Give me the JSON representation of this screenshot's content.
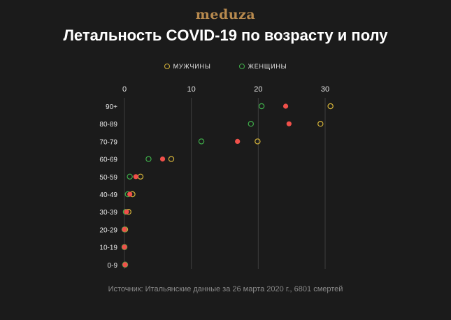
{
  "header": {
    "logo_text": "meduza",
    "title": "Летальность COVID-19 по возрасту и полу"
  },
  "legend": {
    "men_label": "МУЖЧИНЫ",
    "women_label": "ЖЕНЩИНЫ"
  },
  "footer": {
    "source": "Источник: Итальянские данные за 26 марта 2020 г., 6801 смертей"
  },
  "colors": {
    "background": "#1b1b1b",
    "men": "#d6b43a",
    "women": "#3fae4a",
    "average": "#f0504a",
    "grid": "#3e3e3e",
    "logo": "#b88a4e"
  },
  "chart_data": {
    "type": "scatter",
    "title": "Летальность COVID-19 по возрасту и полу",
    "xlim": [
      0,
      30
    ],
    "x_ticks": [
      0,
      10,
      20,
      30
    ],
    "grid": true,
    "legend_position": "top-center",
    "categories": [
      "90+",
      "80-89",
      "70-79",
      "60-69",
      "50-59",
      "40-49",
      "30-39",
      "20-29",
      "10-19",
      "0-9"
    ],
    "series": [
      {
        "name": "МУЖЧИНЫ",
        "marker": "open-circle",
        "color": "#d6b43a",
        "values": [
          30.8,
          29.3,
          19.9,
          7.0,
          2.4,
          1.2,
          0.6,
          0.1,
          0.0,
          0.1
        ]
      },
      {
        "name": "ЖЕНЩИНЫ",
        "marker": "open-circle",
        "color": "#3fae4a",
        "values": [
          20.5,
          18.9,
          11.5,
          3.6,
          0.8,
          0.5,
          0.2,
          0.0,
          0.0,
          0.1
        ]
      },
      {
        "marker": "filled-circle",
        "color": "#f0504a",
        "values": [
          24.1,
          24.6,
          16.9,
          5.7,
          1.7,
          0.8,
          0.3,
          0.0,
          0.0,
          0.1
        ]
      }
    ]
  }
}
